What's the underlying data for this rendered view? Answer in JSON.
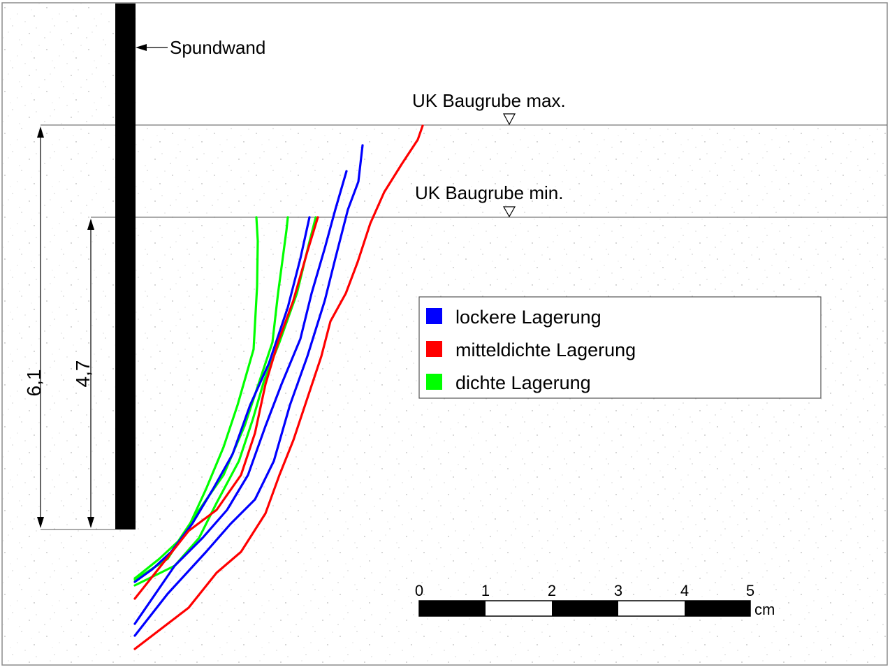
{
  "labels": {
    "wall": "Spundwand",
    "level_max": "UK Baugrube max.",
    "level_min": "UK Baugrube min.",
    "dim_outer": "6,1",
    "dim_inner": "4,7"
  },
  "legend": [
    {
      "label": "lockere Lagerung",
      "color": "#0000ff"
    },
    {
      "label": "mitteldichte Lagerung",
      "color": "#ff0000"
    },
    {
      "label": "dichte Lagerung",
      "color": "#00ff00"
    }
  ],
  "scale_bar": {
    "ticks": [
      "0",
      "1",
      "2",
      "3",
      "4",
      "5"
    ],
    "unit": "cm"
  },
  "colors": {
    "loose": "#0000ff",
    "medium": "#ff0000",
    "dense": "#00ff00",
    "wall": "#000000"
  }
}
